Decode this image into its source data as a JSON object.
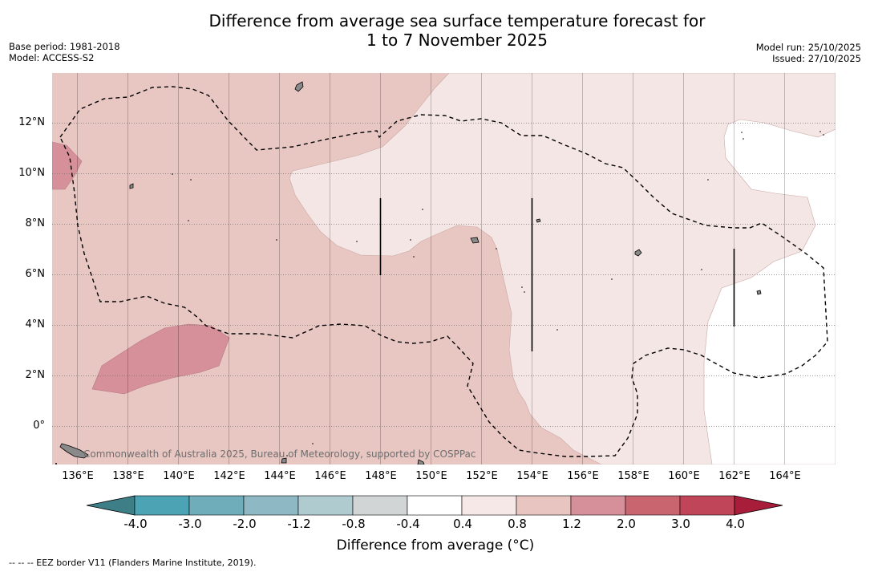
{
  "title": {
    "line1": "Difference from average sea surface temperature forecast for",
    "line2": "1 to 7 November 2025"
  },
  "meta_left": {
    "base_period": "Base period: 1981-2018",
    "model": "Model: ACCESS-S2"
  },
  "meta_right": {
    "model_run": "Model run: 25/10/2025",
    "issued": "Issued: 27/10/2025"
  },
  "map": {
    "lat_labels": [
      "12°N",
      "10°N",
      "8°N",
      "6°N",
      "4°N",
      "2°N",
      "0°"
    ],
    "lon_labels": [
      "136°E",
      "138°E",
      "140°E",
      "142°E",
      "144°E",
      "146°E",
      "148°E",
      "150°E",
      "152°E",
      "154°E",
      "156°E",
      "158°E",
      "160°E",
      "162°E",
      "164°E"
    ],
    "copyright": "Commonwealth of Australia 2025, Bureau of Meteorology, supported by COSPPac",
    "legend_colors": {
      "c_0_4_0_8": "#f4e6e4",
      "c_0_8_1_2": "#e8c6c2",
      "c_1_2_2_0": "#d6909a",
      "land": "#808080",
      "ocean_white": "#ffffff"
    }
  },
  "colorbar": {
    "tick_labels": [
      "-4.0",
      "-3.0",
      "-2.0",
      "-1.2",
      "-0.8",
      "-0.4",
      "0.4",
      "0.8",
      "1.2",
      "2.0",
      "3.0",
      "4.0"
    ],
    "colors": [
      "#3e7e86",
      "#4ca3b4",
      "#6fadbb",
      "#8eb8c3",
      "#b0cbcf",
      "#d1d5d6",
      "#ffffff",
      "#f6e8e7",
      "#e8c5c1",
      "#d6909a",
      "#c9656f",
      "#c04558",
      "#a81d3a"
    ],
    "title": "Difference from average (°C)"
  },
  "footnote": "--  --  -- EEZ border V11 (Flanders Marine Institute, 2019)."
}
